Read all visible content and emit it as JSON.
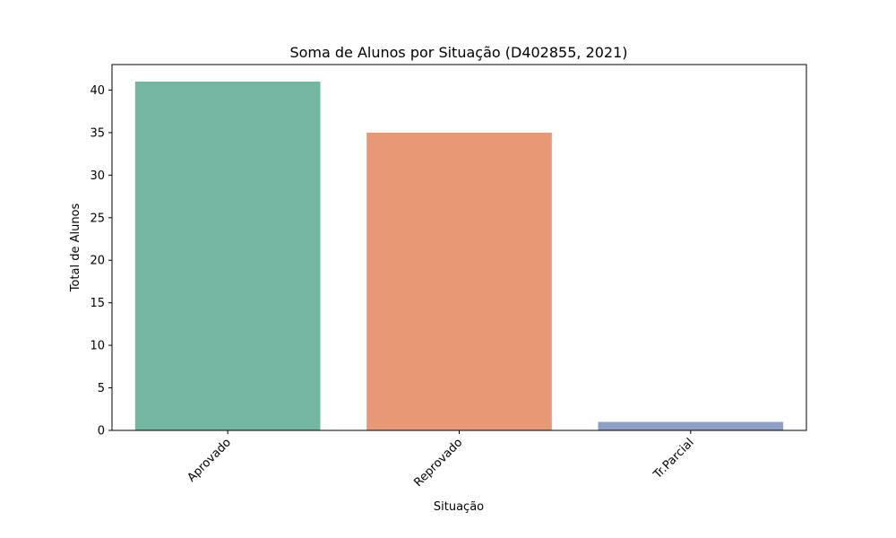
{
  "chart_data": {
    "type": "bar",
    "title": "Soma de Alunos por Situação (D402855, 2021)",
    "xlabel": "Situação",
    "ylabel": "Total de Alunos",
    "categories": [
      "Aprovado",
      "Reprovado",
      "Tr.Parcial"
    ],
    "values": [
      41,
      35,
      1
    ],
    "colors": [
      "#73b6a1",
      "#e89874",
      "#8fa0c6"
    ],
    "ylim": [
      0,
      43
    ],
    "yticks": [
      0,
      5,
      10,
      15,
      20,
      25,
      30,
      35,
      40
    ],
    "grid": false,
    "legend": "none",
    "xtick_rotation": "45 degrees"
  }
}
